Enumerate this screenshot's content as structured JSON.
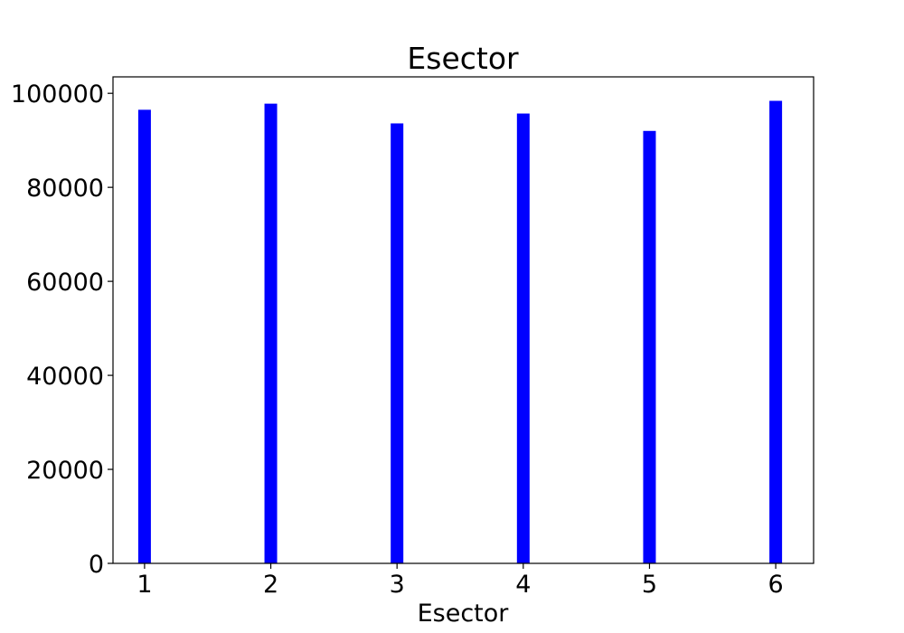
{
  "chart_data": {
    "type": "bar",
    "title": "Esector",
    "xlabel": "Esector",
    "ylabel": "",
    "categories": [
      1,
      2,
      3,
      4,
      5,
      6
    ],
    "values": [
      96500,
      97800,
      93600,
      95700,
      92000,
      98400
    ],
    "bar_color": "#0000ff",
    "xlim": [
      0.75,
      6.3
    ],
    "ylim": [
      0,
      103500
    ],
    "xticks": [
      "1",
      "2",
      "3",
      "4",
      "5",
      "6"
    ],
    "yticks": [
      "0",
      "20000",
      "40000",
      "60000",
      "80000",
      "100000"
    ],
    "ytick_values": [
      0,
      20000,
      40000,
      60000,
      80000,
      100000
    ],
    "grid": false,
    "legend": false
  }
}
